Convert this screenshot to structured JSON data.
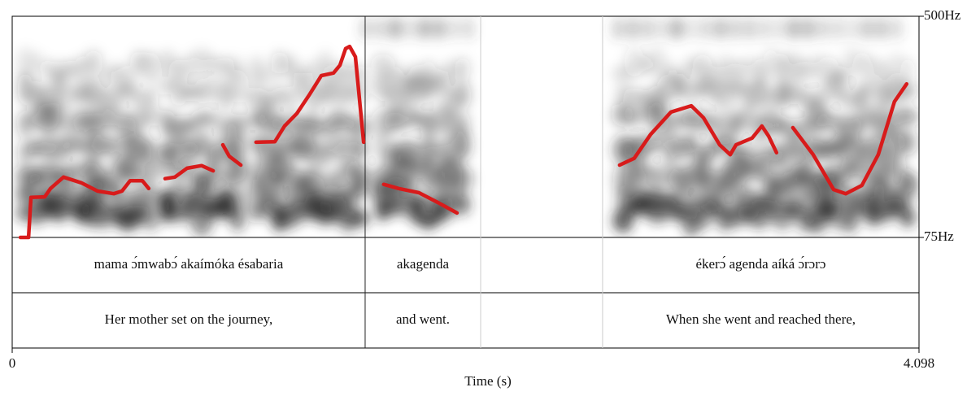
{
  "chart_data": {
    "type": "line",
    "x": [
      0.037,
      0.074,
      0.085,
      0.147,
      0.173,
      0.232,
      0.312,
      0.386,
      0.459,
      0.496,
      0.533,
      0.588,
      0.617,
      null,
      0.691,
      0.735,
      0.79,
      0.856,
      0.908,
      null,
      0.952,
      0.981,
      1.033,
      null,
      1.102,
      1.187,
      1.231,
      1.286,
      1.341,
      1.397,
      1.452,
      1.481,
      1.507,
      1.525,
      1.551,
      1.588,
      null,
      1.679,
      1.746,
      1.838,
      1.929,
      2.01,
      null,
      2.745,
      2.811,
      2.885,
      2.977,
      3.069,
      3.124,
      3.197,
      3.245,
      3.271,
      3.344,
      3.388,
      3.418,
      3.454,
      null,
      3.528,
      3.62,
      3.712,
      3.767,
      3.84,
      3.914,
      3.987,
      4.042
    ],
    "values": [
      75,
      75,
      152,
      153,
      169,
      191,
      180,
      164,
      159,
      164,
      184,
      184,
      169,
      null,
      188,
      191,
      208,
      213,
      203,
      null,
      253,
      231,
      214,
      null,
      258,
      259,
      289,
      313,
      348,
      386,
      391,
      406,
      438,
      442,
      422,
      258,
      null,
      177,
      169,
      161,
      141,
      122,
      null,
      214,
      227,
      273,
      316,
      328,
      305,
      253,
      234,
      253,
      266,
      289,
      270,
      238,
      null,
      286,
      234,
      167,
      159,
      175,
      234,
      336,
      370
    ],
    "color": "#d81b1b",
    "xlim": [
      0,
      4.098
    ],
    "xticks": [
      0,
      4.098
    ],
    "ylim": [
      75,
      500
    ],
    "yticks": [
      {
        "value": 75,
        "label": "75Hz"
      },
      {
        "value": 500,
        "label": "500Hz"
      }
    ],
    "xlabel": "Time (s)",
    "boundaries": [
      1.595,
      2.117,
      2.668
    ],
    "tiers": [
      {
        "intervals": [
          {
            "start": 0,
            "end": 1.595,
            "text": "mama ɔ́mwabɔ́ akaímóka ésabaria"
          },
          {
            "start": 1.595,
            "end": 2.117,
            "text": "akagenda"
          },
          {
            "start": 2.668,
            "end": 4.098,
            "text": "ékerɔ́ agenda aíká ɔ́rɔrɔ"
          }
        ]
      },
      {
        "intervals": [
          {
            "start": 0,
            "end": 1.595,
            "text": "Her mother set on the journey,"
          },
          {
            "start": 1.595,
            "end": 2.117,
            "text": "and went."
          },
          {
            "start": 2.668,
            "end": 4.098,
            "text": "When she went and reached there,"
          }
        ]
      }
    ]
  }
}
